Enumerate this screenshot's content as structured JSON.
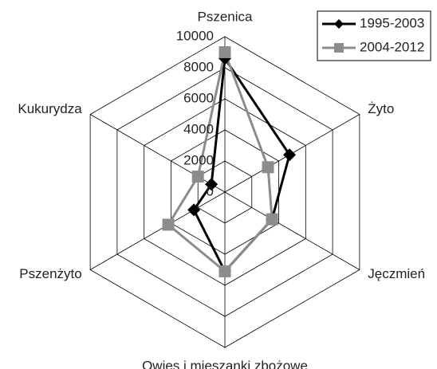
{
  "chart_data": {
    "type": "radar",
    "categories": [
      "Pszenica",
      "Żyto",
      "Jęczmień",
      "Owies i mieszanki zbożowe",
      "Pszenżyto",
      "Kukurydza"
    ],
    "series": [
      {
        "name": "1995-2003",
        "color": "#000000",
        "marker": "diamond",
        "values": [
          8600,
          4800,
          3500,
          5100,
          2300,
          1000
        ]
      },
      {
        "name": "2004-2012",
        "color": "#8c8c8c",
        "marker": "square",
        "values": [
          9000,
          3200,
          3500,
          5100,
          4200,
          2000
        ]
      }
    ],
    "rlim": [
      0,
      10000
    ],
    "rticks": [
      0,
      2000,
      4000,
      6000,
      8000,
      10000
    ],
    "grid": true,
    "legend": "top-right"
  }
}
